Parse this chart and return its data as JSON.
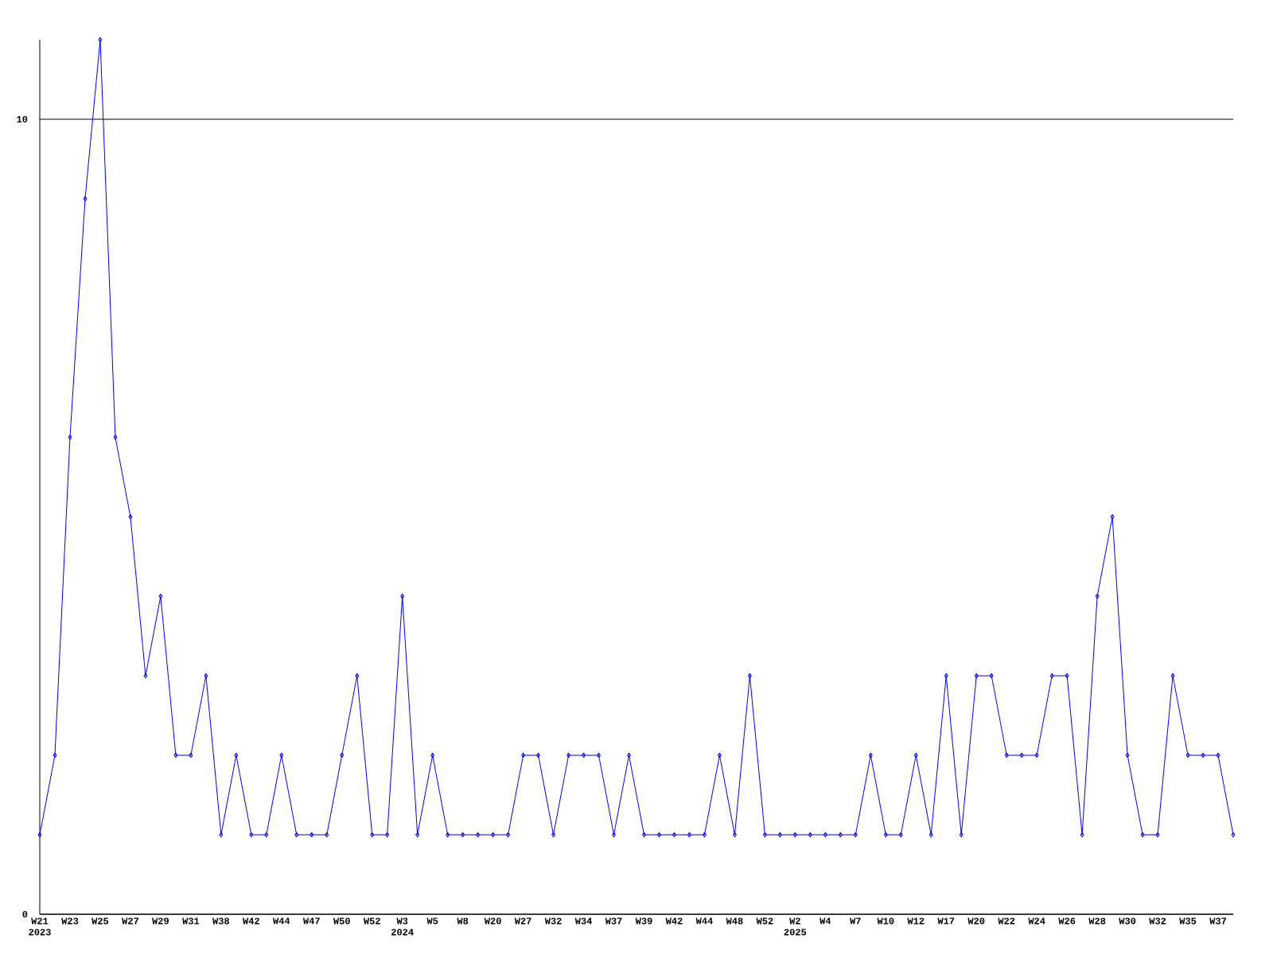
{
  "chart_data": {
    "type": "line",
    "categories": [
      "W21 2023",
      null,
      "W23",
      null,
      "W25",
      null,
      "W27",
      null,
      "W29",
      null,
      "W31",
      null,
      "W38",
      null,
      "W42",
      null,
      "W44",
      null,
      "W47",
      null,
      "W50",
      null,
      "W52",
      null,
      "W3 2024",
      null,
      "W5",
      null,
      "W8",
      null,
      "W20",
      null,
      "W27",
      null,
      "W32",
      null,
      "W34",
      null,
      "W37",
      null,
      "W39",
      null,
      "W42",
      null,
      "W44",
      null,
      "W48",
      null,
      "W52",
      null,
      "W2 2025",
      null,
      "W4",
      null,
      "W7",
      null,
      "W10",
      null,
      "W12",
      null,
      "W17",
      null,
      "W20",
      null,
      "W22",
      null,
      "W24",
      null,
      "W26",
      null,
      "W28",
      null,
      "W30",
      null,
      "W32",
      null,
      "W35",
      null,
      "W37",
      null
    ],
    "series": [
      {
        "color": "#0000ff",
        "values": [
          1,
          2,
          6,
          9,
          11,
          6,
          5,
          3,
          4,
          2,
          2,
          3,
          1,
          2,
          1,
          1,
          2,
          1,
          1,
          1,
          2,
          3,
          1,
          1,
          4,
          1,
          2,
          1,
          1,
          1,
          1,
          1,
          2,
          2,
          1,
          2,
          2,
          2,
          1,
          2,
          1,
          1,
          1,
          1,
          1,
          2,
          1,
          3,
          1,
          1,
          1,
          1,
          1,
          1,
          1,
          2,
          1,
          1,
          2,
          1,
          3,
          1,
          3,
          3,
          2,
          2,
          2,
          3,
          3,
          1,
          4,
          5,
          2,
          1,
          1,
          3,
          2,
          2,
          2,
          1
        ]
      }
    ],
    "ylim": [
      0,
      11
    ],
    "yticks": [
      0,
      10
    ],
    "grid": "y",
    "marker": "diamond",
    "line_style": "solid"
  }
}
